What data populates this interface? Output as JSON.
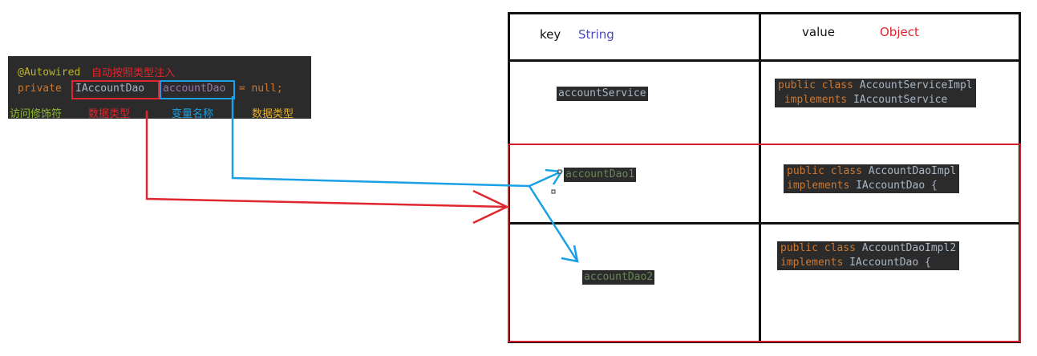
{
  "code": {
    "annotation": "@Autowired",
    "keyword_private": "private",
    "type_name": "IAccountDao",
    "var_name": "accountDao",
    "rest": " = null;"
  },
  "labels": {
    "autowire_note": "自动按照类型注入",
    "access_modifier": "访问修饰符",
    "data_type_1": "数据类型",
    "var_name_label": "变量名称",
    "data_type_2": "数据类型"
  },
  "table": {
    "key_header": "key",
    "key_type": "String",
    "value_header": "value",
    "value_type": "Object",
    "rows": [
      {
        "key": "accountService",
        "value_line1_kw": "public class",
        "value_line1_cls": "AccountServiceImpl",
        "value_line2_kw": "implements",
        "value_line2_cls": "IAccountService"
      },
      {
        "key": "accountDao1",
        "value_line1_kw": "public class",
        "value_line1_cls": "AccountDaoImpl",
        "value_line2_kw": "implements",
        "value_line2_cls": "IAccountDao {"
      },
      {
        "key": "accountDao2",
        "value_line1_kw": "public class",
        "value_line1_cls": "AccountDaoImpl2",
        "value_line2_kw": "implements",
        "value_line2_cls": "IAccountDao {"
      }
    ]
  },
  "colors": {
    "annotation": "#bbb529",
    "keyword": "#cc7832",
    "plain": "#a9b7c6",
    "red": "#e0262e",
    "blue": "#1aa0e6",
    "green_label": "#8fbc2f",
    "orange_label": "#e8b02a",
    "key_green": "#6a8759",
    "string_type": "#4b4bb8"
  }
}
